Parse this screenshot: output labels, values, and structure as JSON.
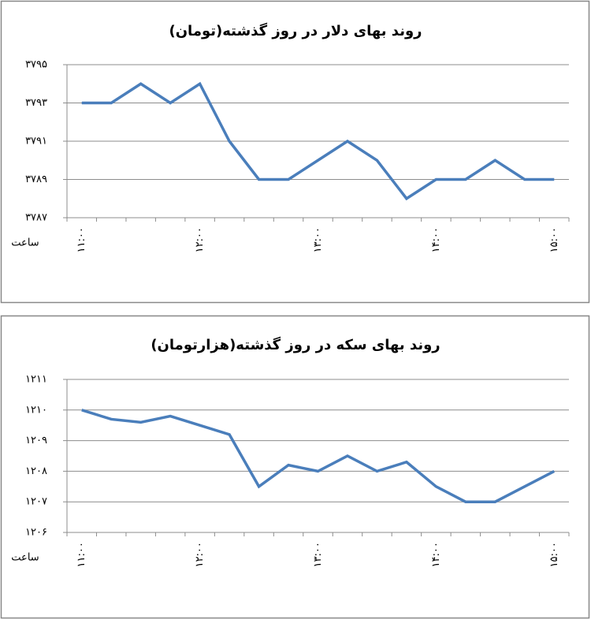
{
  "chart_data": [
    {
      "type": "line",
      "title": "روند بهای دلار در روز گذشته(تومان)",
      "x_label": "ساعت",
      "categories": [
        "۱۱:۰۰",
        null,
        null,
        null,
        "۱۲:۰۰",
        null,
        null,
        null,
        "۱۳:۰۰",
        null,
        null,
        null,
        "۱۴:۰۰",
        null,
        null,
        null,
        "۱۵:۰۰"
      ],
      "series": [
        {
          "name": "دلار",
          "color": "#4a7ebb",
          "values": [
            3793,
            3793,
            3794,
            3793,
            3794,
            3791,
            3789,
            3789,
            3790,
            3791,
            3790,
            3788,
            3789,
            3789,
            3790,
            3789,
            3789
          ]
        }
      ],
      "ylim": [
        3787,
        3795
      ],
      "yticks": [
        {
          "value": 3787,
          "label": "۳۷۸۷"
        },
        {
          "value": 3789,
          "label": "۳۷۸۹"
        },
        {
          "value": 3791,
          "label": "۳۷۹۱"
        },
        {
          "value": 3793,
          "label": "۳۷۹۳"
        },
        {
          "value": 3795,
          "label": "۳۷۹۵"
        }
      ],
      "grid": true
    },
    {
      "type": "line",
      "title": "روند بهای سکه در روز گذشته(هزارتومان)",
      "x_label": "ساعت",
      "categories": [
        "۱۱:۰۰",
        null,
        null,
        null,
        "۱۲:۰۰",
        null,
        null,
        null,
        "۱۳:۰۰",
        null,
        null,
        null,
        "۱۴:۰۰",
        null,
        null,
        null,
        "۱۵:۰۰"
      ],
      "series": [
        {
          "name": "سکه",
          "color": "#4a7ebb",
          "values": [
            1210,
            1209.7,
            1209.6,
            1209.8,
            1209.5,
            1209.2,
            1207.5,
            1208.2,
            1208,
            1208.5,
            1208,
            1208.3,
            1207.5,
            1207,
            1207,
            1207.5,
            1208
          ]
        }
      ],
      "ylim": [
        1206,
        1211
      ],
      "yticks": [
        {
          "value": 1206,
          "label": "۱۲۰۶"
        },
        {
          "value": 1207,
          "label": "۱۲۰۷"
        },
        {
          "value": 1208,
          "label": "۱۲۰۸"
        },
        {
          "value": 1209,
          "label": "۱۲۰۹"
        },
        {
          "value": 1210,
          "label": "۱۲۱۰"
        },
        {
          "value": 1211,
          "label": "۱۲۱۱"
        }
      ],
      "grid": true
    }
  ]
}
